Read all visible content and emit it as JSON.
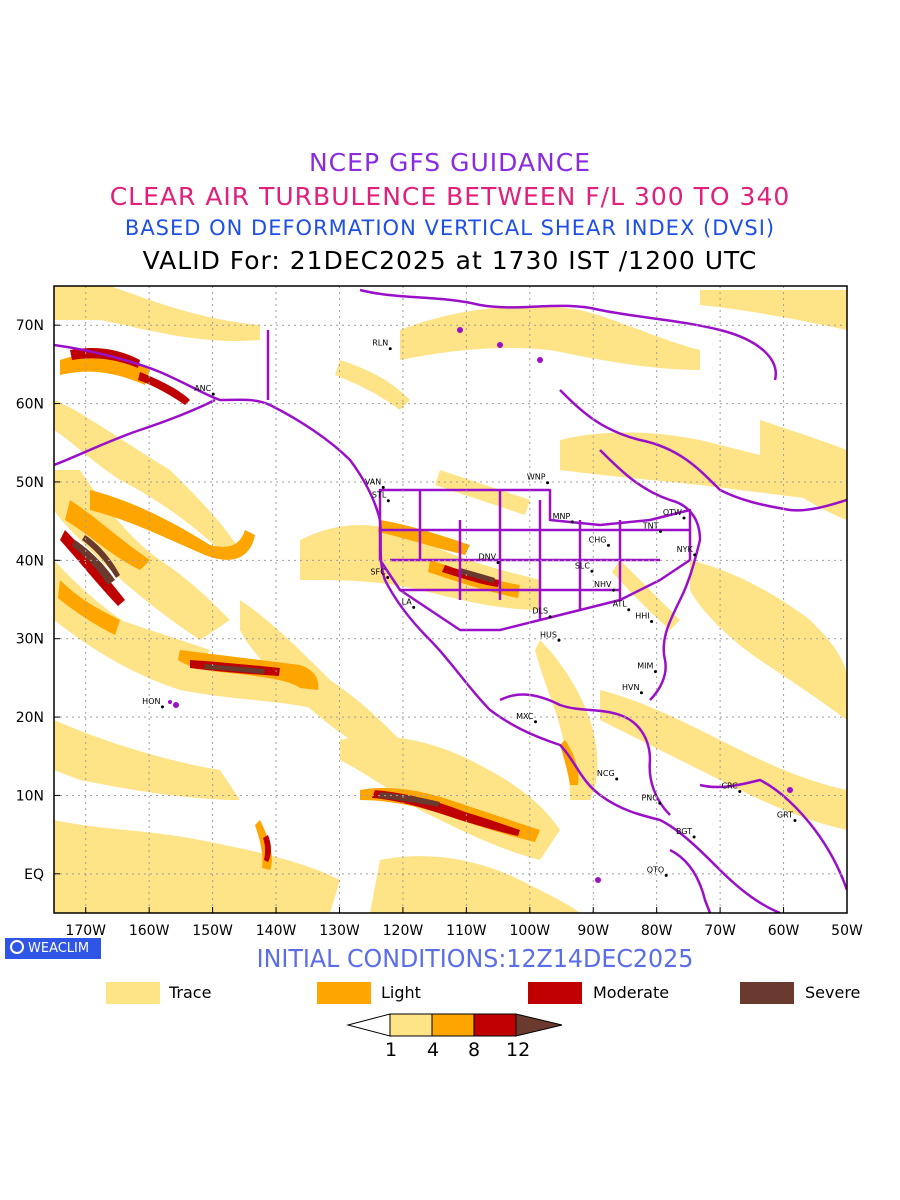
{
  "titles": {
    "line1": "NCEP GFS GUIDANCE",
    "line2": "CLEAR AIR TURBULENCE BETWEEN F/L 300 TO 340",
    "line3": "BASED ON DEFORMATION VERTICAL SHEAR INDEX (DVSI)",
    "line4": "VALID For: 21DEC2025 at 1730 IST /1200 UTC"
  },
  "initial_conditions": "INITIAL CONDITIONS:12Z14DEC2025",
  "brand": "WEACLIM",
  "map": {
    "lon_range": [
      -175,
      -50
    ],
    "lat_range": [
      -5,
      75
    ],
    "lat_labels": [
      "70N",
      "60N",
      "50N",
      "40N",
      "30N",
      "20N",
      "10N",
      "EQ"
    ],
    "lon_labels": [
      "170W",
      "160W",
      "150W",
      "140W",
      "130W",
      "120W",
      "110W",
      "100W",
      "90W",
      "80W",
      "70W",
      "60W",
      "50W"
    ],
    "stations": [
      {
        "code": "ANC",
        "lon": -149.9,
        "lat": 61.2
      },
      {
        "code": "RLN",
        "lon": -122,
        "lat": 67
      },
      {
        "code": "VAN",
        "lon": -123.1,
        "lat": 49.3
      },
      {
        "code": "STL",
        "lon": -122.3,
        "lat": 47.6
      },
      {
        "code": "WNP",
        "lon": -97.2,
        "lat": 49.9
      },
      {
        "code": "MNP",
        "lon": -93.3,
        "lat": 44.9
      },
      {
        "code": "CHG",
        "lon": -87.6,
        "lat": 41.9
      },
      {
        "code": "TNT",
        "lon": -79.4,
        "lat": 43.7
      },
      {
        "code": "OTW",
        "lon": -75.7,
        "lat": 45.4
      },
      {
        "code": "NYK",
        "lon": -74,
        "lat": 40.7
      },
      {
        "code": "DNV",
        "lon": -105,
        "lat": 39.7
      },
      {
        "code": "SFC",
        "lon": -122.4,
        "lat": 37.8
      },
      {
        "code": "LA",
        "lon": -118.3,
        "lat": 34
      },
      {
        "code": "SLC",
        "lon": -90.2,
        "lat": 38.6
      },
      {
        "code": "NHV",
        "lon": -86.8,
        "lat": 36.2
      },
      {
        "code": "ATL",
        "lon": -84.4,
        "lat": 33.7
      },
      {
        "code": "DLS",
        "lon": -96.8,
        "lat": 32.8
      },
      {
        "code": "HHI",
        "lon": -80.8,
        "lat": 32.2
      },
      {
        "code": "HUS",
        "lon": -95.4,
        "lat": 29.8
      },
      {
        "code": "MIM",
        "lon": -80.2,
        "lat": 25.8
      },
      {
        "code": "HVN",
        "lon": -82.4,
        "lat": 23.1
      },
      {
        "code": "HON",
        "lon": -157.9,
        "lat": 21.3
      },
      {
        "code": "MXC",
        "lon": -99.1,
        "lat": 19.4
      },
      {
        "code": "NCG",
        "lon": -86.3,
        "lat": 12.1
      },
      {
        "code": "PNC",
        "lon": -79.5,
        "lat": 9
      },
      {
        "code": "CRC",
        "lon": -66.9,
        "lat": 10.5
      },
      {
        "code": "GRT",
        "lon": -58.2,
        "lat": 6.8
      },
      {
        "code": "BGT",
        "lon": -74.1,
        "lat": 4.7
      },
      {
        "code": "QTO",
        "lon": -78.5,
        "lat": -0.2
      }
    ]
  },
  "legend": {
    "items": [
      {
        "label": "Trace",
        "color": "#ffe387"
      },
      {
        "label": "Light",
        "color": "#ffa500"
      },
      {
        "label": "Moderate",
        "color": "#c00000"
      },
      {
        "label": "Severe",
        "color": "#6b3a2e"
      }
    ],
    "colorbar_ticks": [
      "1",
      "4",
      "8",
      "12"
    ]
  },
  "colors": {
    "line1": "#8a2be2",
    "line2": "#e0207a",
    "line3": "#1e4fe8",
    "coastline": "#9a10c8",
    "trace": "#ffe387",
    "light": "#ffa500",
    "moderate": "#c00000",
    "severe": "#6b3a2e",
    "brand_bg": "#2f55e6",
    "init_text": "#5b6ee8"
  }
}
